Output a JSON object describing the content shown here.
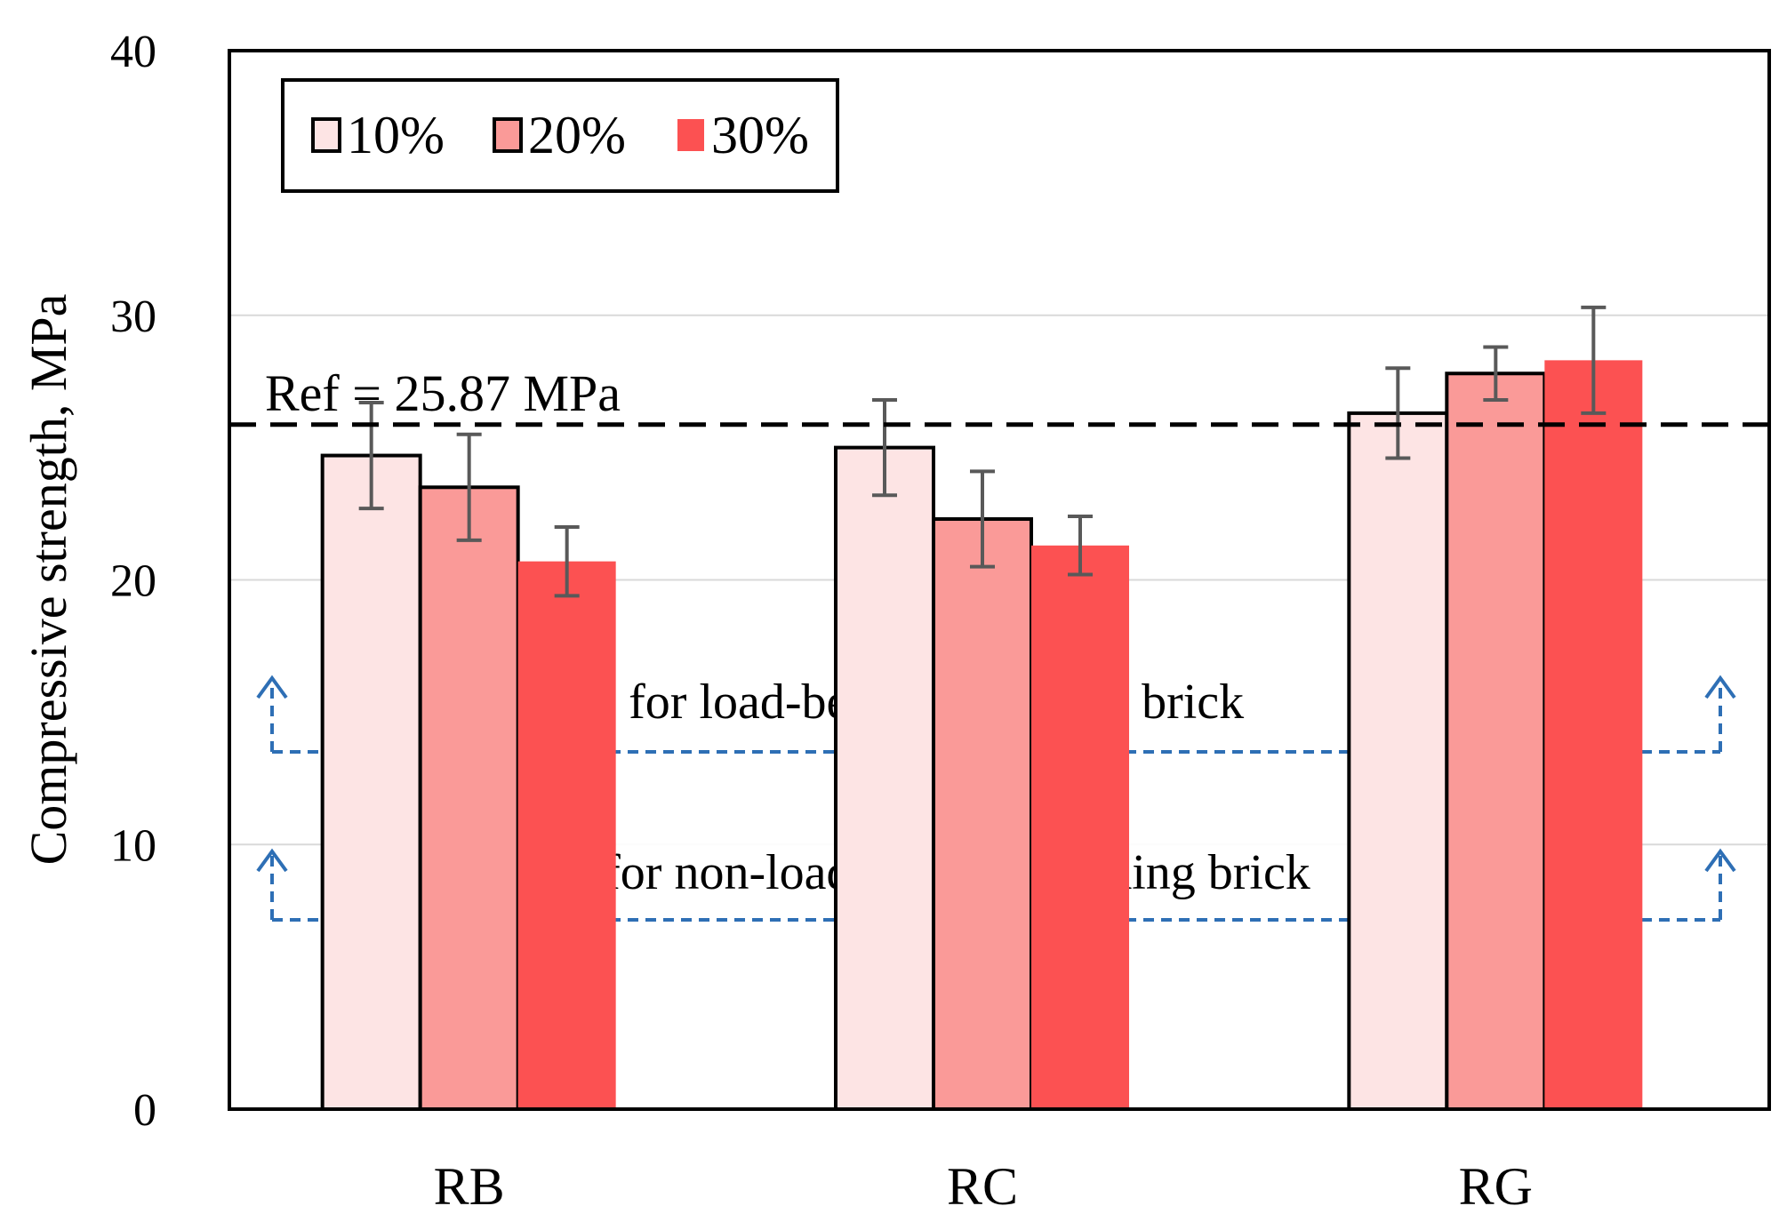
{
  "chart_data": {
    "type": "bar",
    "ylabel": "Compressive strength, MPa",
    "xlabel": "",
    "ylim": [
      0,
      40
    ],
    "yticks": [
      0,
      10,
      20,
      30,
      40
    ],
    "categories": [
      "RB",
      "RC",
      "RG"
    ],
    "series": [
      {
        "name": "10%",
        "values": [
          24.7,
          25.0,
          26.3
        ],
        "errors": [
          2.0,
          1.8,
          1.7
        ],
        "color": "#fde4e4"
      },
      {
        "name": "20%",
        "values": [
          23.5,
          22.3,
          27.8
        ],
        "errors": [
          2.0,
          1.8,
          1.0
        ],
        "color": "#fa9a98"
      },
      {
        "name": "30%",
        "values": [
          20.7,
          21.3,
          28.3
        ],
        "errors": [
          1.3,
          1.1,
          2.0
        ],
        "color": "#fc5152"
      }
    ],
    "reference": {
      "label": "Ref = 25.87 MPa",
      "value": 25.87
    },
    "thresholds": [
      {
        "label": "Min. 13 MPa for load-bearing building brick",
        "value": 13
      },
      {
        "label": "Min. 8 MPa for non-load-bearing building brick",
        "value": 8
      }
    ],
    "legend_position": "top-left",
    "grid": true,
    "colors": {
      "grid": "#d9d9d9",
      "error_bar": "#595959",
      "threshold_line": "#2e6fb5",
      "reference_line": "#000000"
    }
  }
}
